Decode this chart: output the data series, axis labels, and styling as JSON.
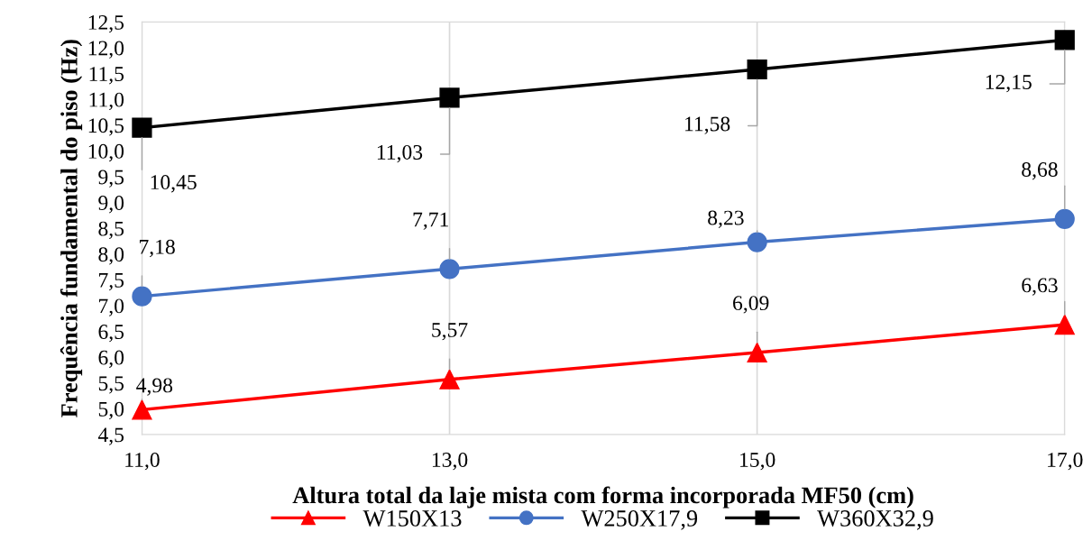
{
  "chart_data": {
    "type": "line",
    "xlabel": "Altura total da laje mista com forma incorporada MF50 (cm)",
    "ylabel": "Frequência fundamental do piso (Hz)",
    "x": [
      11,
      13,
      15,
      17
    ],
    "xlim": [
      11,
      17
    ],
    "xticks": [
      {
        "value": 11,
        "label": "11,0"
      },
      {
        "value": 13,
        "label": "13,0"
      },
      {
        "value": 15,
        "label": "15,0"
      },
      {
        "value": 17,
        "label": "17,0"
      }
    ],
    "ylim": [
      4.5,
      12.5
    ],
    "yticks": [
      {
        "value": 4.5,
        "label": "4,5"
      },
      {
        "value": 5,
        "label": "5,0"
      },
      {
        "value": 5.5,
        "label": "5,5"
      },
      {
        "value": 6,
        "label": "6,0"
      },
      {
        "value": 6.5,
        "label": "6,5"
      },
      {
        "value": 7,
        "label": "7,0"
      },
      {
        "value": 7.5,
        "label": "7,5"
      },
      {
        "value": 8,
        "label": "8,0"
      },
      {
        "value": 8.5,
        "label": "8,5"
      },
      {
        "value": 9,
        "label": "9,0"
      },
      {
        "value": 9.5,
        "label": "9,5"
      },
      {
        "value": 10,
        "label": "10,0"
      },
      {
        "value": 10.5,
        "label": "10,5"
      },
      {
        "value": 11,
        "label": "11,0"
      },
      {
        "value": 11.5,
        "label": "11,5"
      },
      {
        "value": 12,
        "label": "12,0"
      },
      {
        "value": 12.5,
        "label": "12,5"
      }
    ],
    "grid": "x",
    "legend": "bottom",
    "series": [
      {
        "name": "W150X13",
        "color": "#ff0000",
        "marker": "triangle",
        "values": [
          4.98,
          5.57,
          6.09,
          6.63
        ],
        "value_labels": [
          "4,98",
          "5,57",
          "6,09",
          "6,63"
        ]
      },
      {
        "name": "W250X17,9",
        "color": "#4472c4",
        "marker": "circle",
        "values": [
          7.18,
          7.71,
          8.23,
          8.68
        ],
        "value_labels": [
          "7,18",
          "7,71",
          "8,23",
          "8,68"
        ]
      },
      {
        "name": "W360X32,9",
        "color": "#000000",
        "marker": "square",
        "values": [
          10.45,
          11.03,
          11.58,
          12.15
        ],
        "value_labels": [
          "10,45",
          "11,03",
          "11,58",
          "12,15"
        ]
      }
    ]
  }
}
